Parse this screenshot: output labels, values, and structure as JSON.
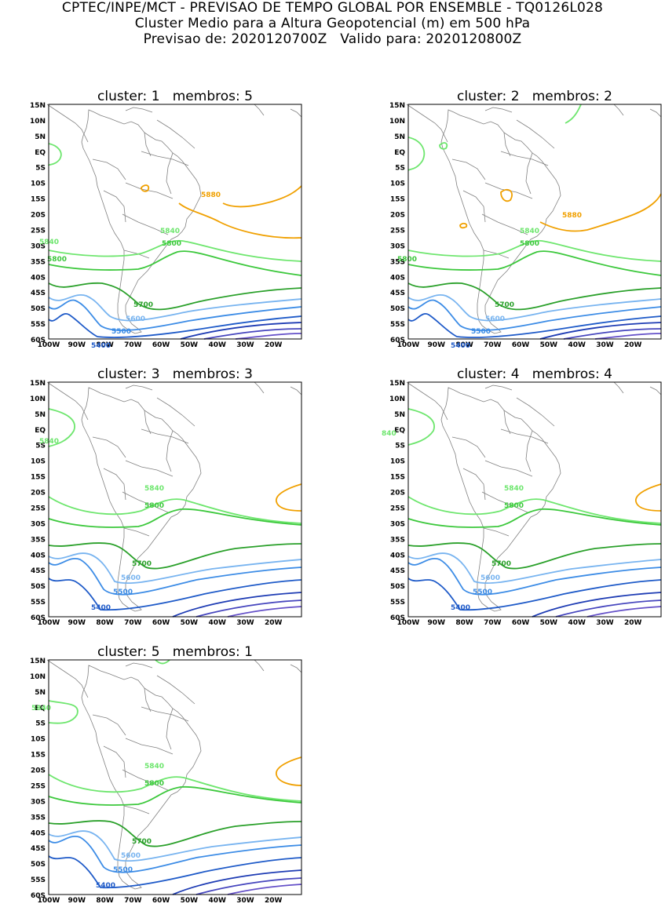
{
  "header": {
    "line1": "CPTEC/INPE/MCT - PREVISAO DE TEMPO GLOBAL POR ENSEMBLE - TQ0126L028",
    "line2": "Cluster Medio para a Altura Geopotencial (m) em 500 hPa",
    "line3_left": "Previsao de: 2020120700Z",
    "line3_right": "Valido para: 2020120800Z"
  },
  "axes": {
    "lat_labels": [
      "15N",
      "10N",
      "5N",
      "EQ",
      "5S",
      "10S",
      "15S",
      "20S",
      "25S",
      "30S",
      "35S",
      "40S",
      "45S",
      "50S",
      "55S",
      "60S"
    ],
    "lon_labels": [
      "100W",
      "90W",
      "80W",
      "70W",
      "60W",
      "50W",
      "40W",
      "30W",
      "20W"
    ]
  },
  "colors": {
    "c5880": "#f0a000",
    "c5840": "#6ee66e",
    "c5800": "#3cc83c",
    "c5700": "#2aa02a",
    "c5600": "#78b4f0",
    "c5500": "#3c8ce6",
    "c5400": "#1e5ac8",
    "deep1": "#1e3cb4",
    "deep2": "#4646be",
    "deep3": "#6450c8",
    "coast": "#808080"
  },
  "panels": [
    {
      "word_cluster": "cluster:",
      "number": "1",
      "word_membros": "membros:",
      "members": "5",
      "labels": {
        "c5880": "5880",
        "c5840": "5840",
        "c5840b": "5840",
        "c5800": "5800",
        "c5800b": "5800",
        "c5700": "5700",
        "c5600": "5600",
        "c5500": "5500",
        "c5400": "5400"
      }
    },
    {
      "word_cluster": "cluster:",
      "number": "2",
      "word_membros": "membros:",
      "members": "2",
      "labels": {
        "c5880": "5880",
        "c5840": "5840",
        "c5800": "5800",
        "c5800b": "5800",
        "c5700": "5700",
        "c5600": "5600",
        "c5500": "5500",
        "c5400": "5400"
      }
    },
    {
      "word_cluster": "cluster:",
      "number": "3",
      "word_membros": "membros:",
      "members": "3",
      "labels": {
        "c5840w": "5840",
        "c5840": "5840",
        "c5800": "5800",
        "c5700": "5700",
        "c5600": "5600",
        "c5500": "5500",
        "c5400": "5400"
      }
    },
    {
      "word_cluster": "cluster:",
      "number": "4",
      "word_membros": "membros:",
      "members": "4",
      "labels": {
        "c5840w": "840",
        "c5840": "5840",
        "c5800": "5800",
        "c5700": "5700",
        "c5600": "5600",
        "c5500": "5500",
        "c5400": "5400"
      }
    },
    {
      "word_cluster": "cluster:",
      "number": "5",
      "word_membros": "membros:",
      "members": "1",
      "labels": {
        "c5840w": "5840",
        "c5840": "5840",
        "c5800": "5800",
        "c5700": "5700",
        "c5600": "5600",
        "c5500": "5500",
        "c5400": "5400"
      }
    }
  ]
}
